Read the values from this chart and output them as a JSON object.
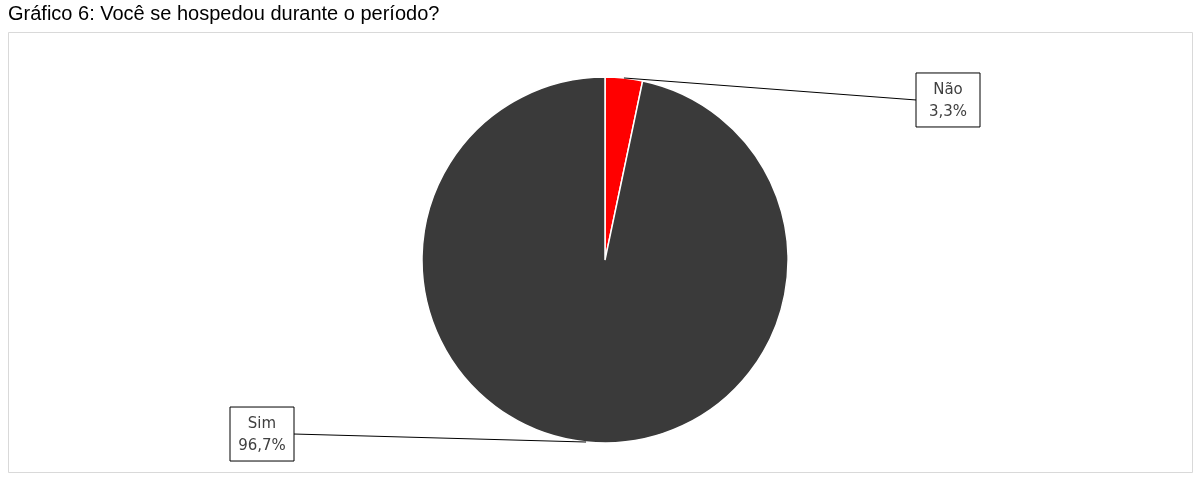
{
  "chart_data": {
    "type": "pie",
    "title": "Gráfico 6: Você se hospedou durante o período?",
    "categories": [
      "Não",
      "Sim"
    ],
    "values": [
      3.3,
      96.7
    ],
    "colors": [
      "#ff0000",
      "#3a3a3a"
    ],
    "value_labels": [
      "3,3%",
      "96,7%"
    ],
    "legend": false
  }
}
